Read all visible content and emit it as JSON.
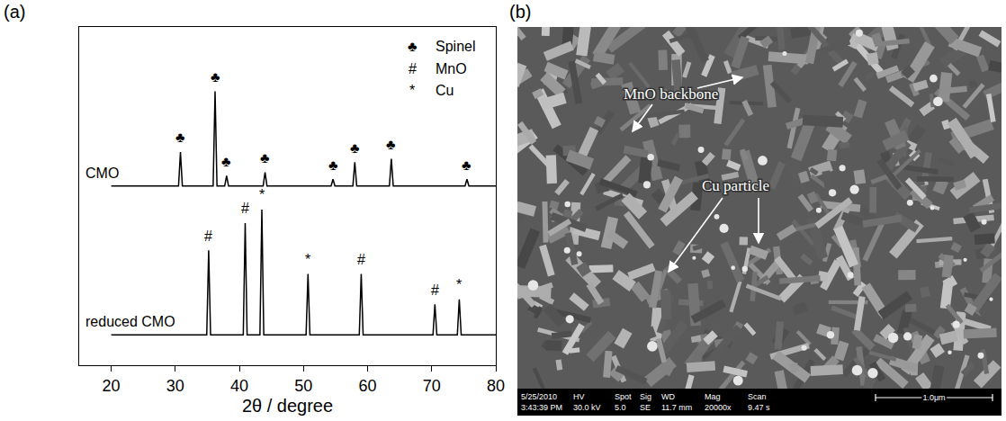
{
  "panels": {
    "a": "(a)",
    "b": "(b)"
  },
  "chart_data": {
    "type": "line",
    "xlabel": "2θ / degree",
    "xlim": [
      15,
      80
    ],
    "xticks": [
      20,
      30,
      40,
      50,
      60,
      70,
      80
    ],
    "ylim": [
      0,
      100
    ],
    "tick_labels": "x",
    "grid": false,
    "series": [
      {
        "name": "CMO",
        "color": "#000000",
        "x": [
          20,
          30.5,
          30.8,
          31.1,
          35.9,
          36.2,
          36.5,
          37.7,
          38.0,
          38.3,
          43.7,
          44.0,
          44.3,
          54.3,
          54.6,
          54.9,
          57.7,
          58.0,
          58.3,
          63.4,
          63.7,
          64.0,
          75.2,
          75.5,
          75.8,
          80
        ],
        "values": [
          53,
          53,
          63,
          53,
          53,
          81,
          53,
          53,
          56,
          53,
          53,
          57,
          53,
          53,
          55,
          53,
          53,
          60,
          53,
          53,
          61,
          53,
          53,
          55,
          53,
          53
        ]
      },
      {
        "name": "reduced CMO",
        "color": "#000000",
        "x": [
          20,
          34.9,
          35.2,
          35.5,
          40.6,
          40.9,
          41.2,
          43.2,
          43.5,
          43.8,
          50.4,
          50.7,
          51.0,
          58.7,
          59.0,
          59.3,
          70.2,
          70.5,
          70.8,
          74.0,
          74.3,
          74.6,
          80
        ],
        "values": [
          9,
          9,
          34,
          9,
          9,
          42,
          9,
          9,
          46,
          9,
          9,
          27,
          9,
          9,
          27,
          9,
          9,
          18,
          9,
          9,
          19.5,
          9,
          9
        ]
      }
    ],
    "key": [
      {
        "symbol": "♣",
        "label": "Spinel"
      },
      {
        "symbol": "#",
        "label": "MnO"
      },
      {
        "symbol": "*",
        "label": "Cu"
      }
    ],
    "annotations": [
      {
        "text": "♣",
        "x": 30.8,
        "y": 64.5
      },
      {
        "text": "♣",
        "x": 36.2,
        "y": 82.5
      },
      {
        "text": "♣",
        "x": 38.0,
        "y": 57.5
      },
      {
        "text": "♣",
        "x": 44.0,
        "y": 58.5
      },
      {
        "text": "♣",
        "x": 54.6,
        "y": 56.5
      },
      {
        "text": "♣",
        "x": 58.0,
        "y": 61.5
      },
      {
        "text": "♣",
        "x": 63.7,
        "y": 62.5
      },
      {
        "text": "♣",
        "x": 75.5,
        "y": 56.5
      },
      {
        "text": "#",
        "x": 35.2,
        "y": 35.5
      },
      {
        "text": "#",
        "x": 40.9,
        "y": 43.5
      },
      {
        "text": "*",
        "x": 43.5,
        "y": 47.5
      },
      {
        "text": "*",
        "x": 50.7,
        "y": 28.5
      },
      {
        "text": "#",
        "x": 59.0,
        "y": 28.5
      },
      {
        "text": "#",
        "x": 70.5,
        "y": 19.5
      },
      {
        "text": "*",
        "x": 74.3,
        "y": 21
      }
    ]
  },
  "sem_image": {
    "labels": [
      "MnO backbone",
      "Cu particle"
    ],
    "info_bar": {
      "date": "5/25/2010",
      "time": "3:43:39 PM",
      "fields": [
        {
          "name": "HV",
          "value": "30.0 kV"
        },
        {
          "name": "Spot",
          "value": "5.0"
        },
        {
          "name": "Sig",
          "value": "SE"
        },
        {
          "name": "WD",
          "value": "11.7 mm"
        },
        {
          "name": "Mag",
          "value": "20000x"
        },
        {
          "name": "Scan",
          "value": "9.47 s"
        }
      ],
      "scale_bar": "1.0μm"
    }
  }
}
